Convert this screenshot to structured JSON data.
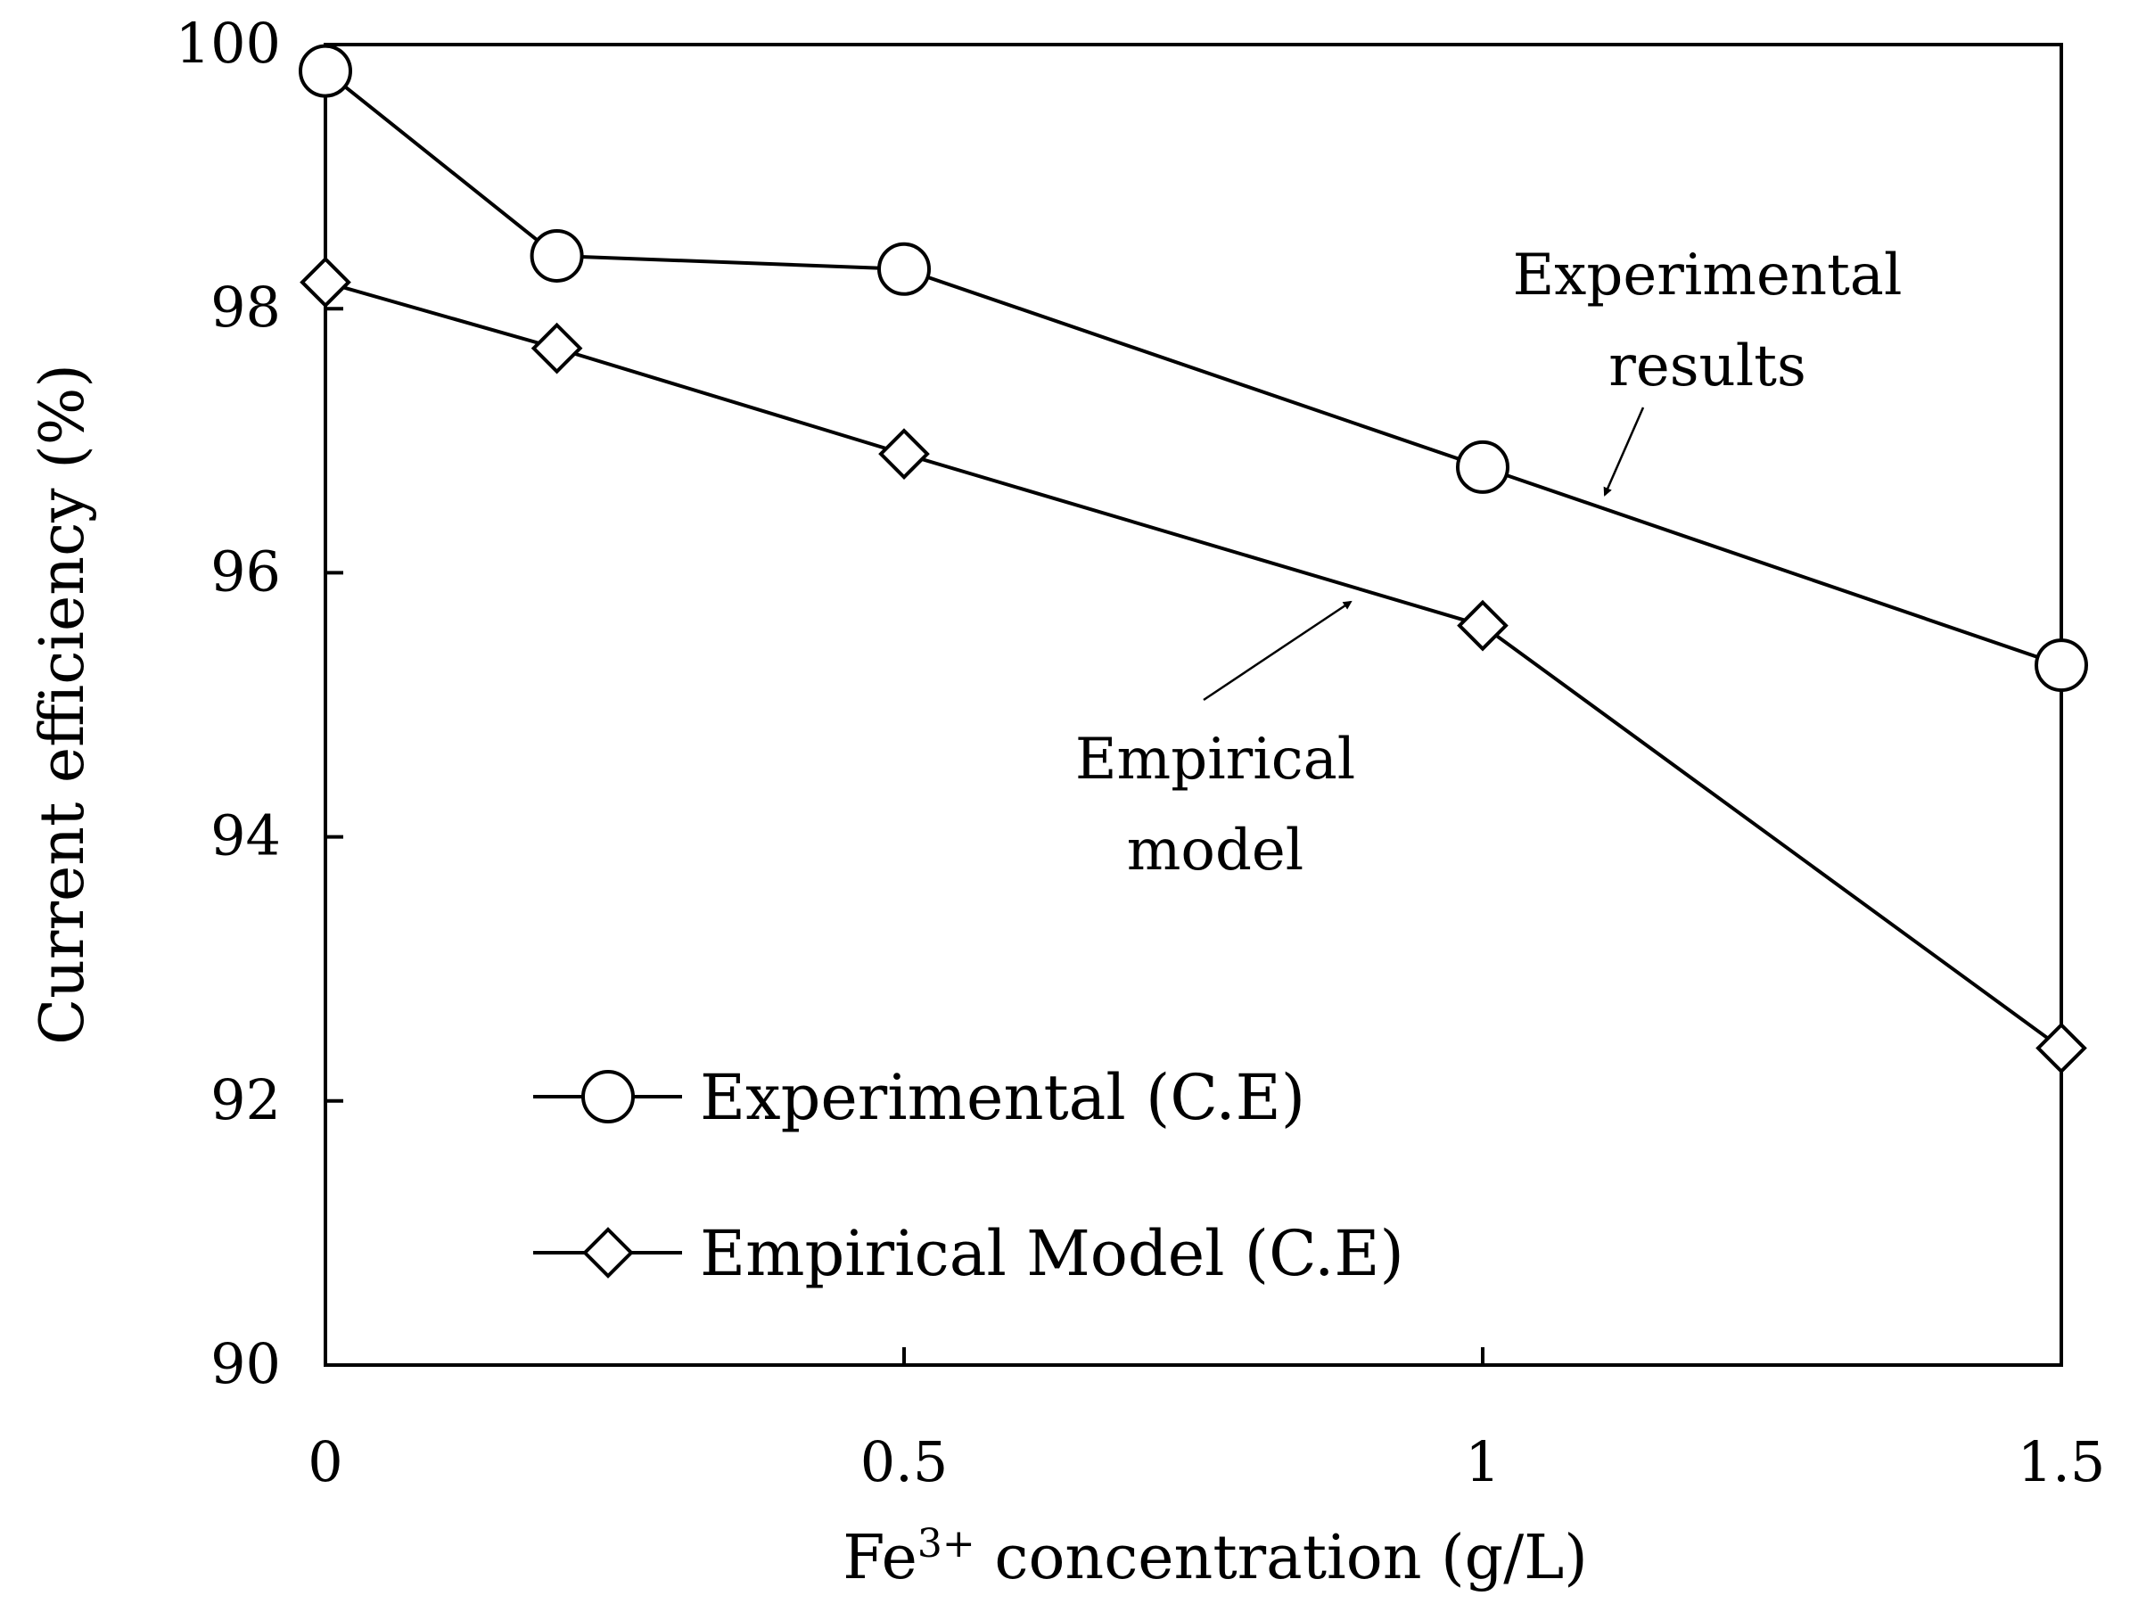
{
  "chart_data": {
    "type": "line",
    "title": "",
    "xlabel": {
      "pre": "Fe",
      "sup": "3+",
      "post": " concentration (g/L)"
    },
    "ylabel": "Current efficiency (%)",
    "xlim": [
      0,
      1.5
    ],
    "ylim": [
      90,
      100
    ],
    "xticks": [
      0,
      0.5,
      1,
      1.5
    ],
    "xtick_labels": [
      "0",
      "0.5",
      "1",
      "1.5"
    ],
    "yticks": [
      90,
      92,
      94,
      96,
      98,
      100
    ],
    "ytick_labels": [
      "90",
      "92",
      "94",
      "96",
      "98",
      "100"
    ],
    "grid": false,
    "legend_position": "bottom-left",
    "series": [
      {
        "name": "Experimental (C.E)",
        "marker": "circle",
        "x": [
          0,
          0.2,
          0.5,
          1,
          1.5
        ],
        "y": [
          99.8,
          98.4,
          98.3,
          96.8,
          95.3
        ]
      },
      {
        "name": "Empirical Model (C.E)",
        "marker": "diamond",
        "x": [
          0,
          0.2,
          0.5,
          1,
          1.5
        ],
        "y": [
          98.2,
          97.7,
          96.9,
          95.6,
          92.4
        ]
      }
    ],
    "annotations": [
      {
        "lines": [
          "Experimental",
          "results"
        ],
        "points_to": "Experimental (C.E)"
      },
      {
        "lines": [
          "Empirical",
          "model"
        ],
        "points_to": "Empirical Model (C.E)"
      }
    ]
  }
}
